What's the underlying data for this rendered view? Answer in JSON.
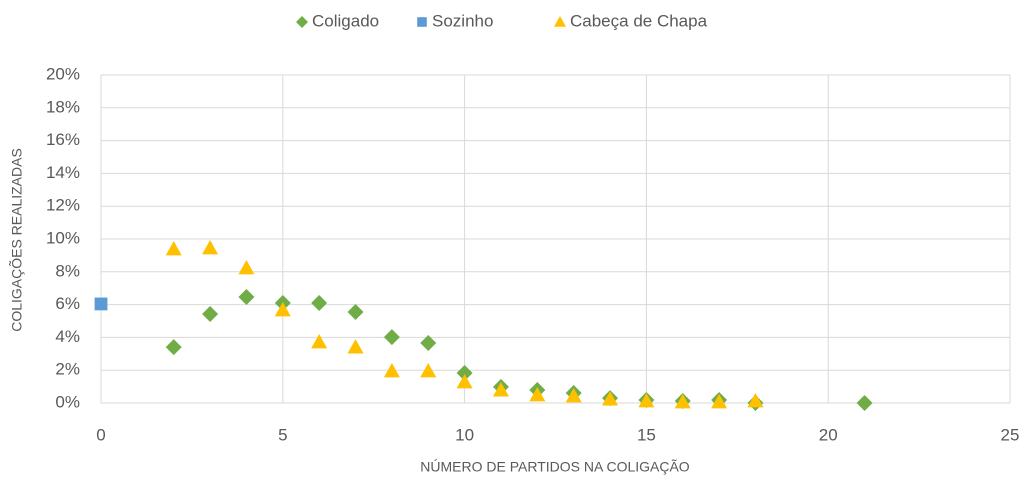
{
  "chart_data": {
    "type": "scatter",
    "xlabel": "NÚMERO DE PARTIDOS NA COLIGAÇÃO",
    "ylabel": "COLIGAÇÕES REALIZADAS",
    "xlim": [
      0,
      25
    ],
    "xticks": [
      0,
      5,
      10,
      15,
      20,
      25
    ],
    "ylim": [
      0,
      20
    ],
    "yticks": [
      {
        "value": 0,
        "label": "0%"
      },
      {
        "value": 2,
        "label": "2%"
      },
      {
        "value": 4,
        "label": "4%"
      },
      {
        "value": 6,
        "label": "6%"
      },
      {
        "value": 8,
        "label": "8%"
      },
      {
        "value": 10,
        "label": "10%"
      },
      {
        "value": 12,
        "label": "12%"
      },
      {
        "value": 14,
        "label": "14%"
      },
      {
        "value": 16,
        "label": "16%"
      },
      {
        "value": 18,
        "label": "18%"
      },
      {
        "value": 20,
        "label": "20%"
      }
    ],
    "grid": true,
    "legend": "top",
    "series": [
      {
        "name": "Coligado",
        "color": "#70ad47",
        "marker": "diamond",
        "x": [
          2,
          3,
          4,
          5,
          6,
          7,
          8,
          9,
          10,
          11,
          12,
          13,
          14,
          15,
          16,
          17,
          18,
          21
        ],
        "values": [
          3.41,
          5.43,
          6.46,
          6.1,
          6.1,
          5.55,
          4.02,
          3.66,
          1.83,
          0.98,
          0.79,
          0.61,
          0.3,
          0.18,
          0.12,
          0.18,
          0,
          0
        ]
      },
      {
        "name": "Sozinho",
        "color": "#5b9bd5",
        "marker": "square",
        "x": [
          0
        ],
        "values": [
          6.04
        ]
      },
      {
        "name": "Cabeça de Chapa",
        "color": "#ffc000",
        "marker": "triangle",
        "x": [
          2,
          3,
          4,
          5,
          6,
          7,
          8,
          9,
          10,
          11,
          12,
          13,
          14,
          15,
          16,
          17,
          18
        ],
        "values": [
          9.39,
          9.45,
          8.23,
          5.67,
          3.72,
          3.41,
          1.95,
          1.95,
          1.28,
          0.79,
          0.49,
          0.43,
          0.24,
          0.12,
          0.06,
          0.06,
          0.12
        ]
      }
    ]
  }
}
